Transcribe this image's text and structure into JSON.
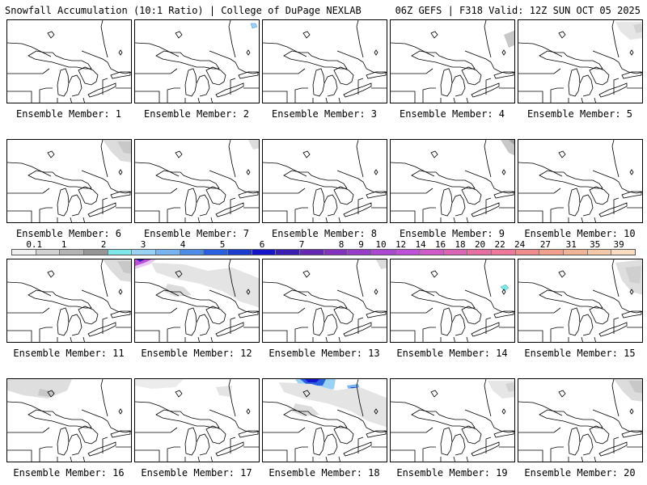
{
  "header": {
    "left": "Snowfall Accumulation (10:1 Ratio) | College of DuPage NEXLAB",
    "right": "06Z GEFS | F318 Valid: 12Z SUN OCT 05 2025"
  },
  "member_prefix": "Ensemble Member:",
  "members": [
    {
      "number": "1",
      "snow": []
    },
    {
      "number": "2",
      "snow": [
        "blue-ne-tiny"
      ]
    },
    {
      "number": "3",
      "snow": []
    },
    {
      "number": "4",
      "snow": [
        "gray-e-edge"
      ]
    },
    {
      "number": "5",
      "snow": [
        "gray-ne-light"
      ]
    },
    {
      "number": "6",
      "snow": [
        "gray-ne"
      ]
    },
    {
      "number": "7",
      "snow": [
        "gray-ne-tiny"
      ]
    },
    {
      "number": "8",
      "snow": []
    },
    {
      "number": "9",
      "snow": [
        "gray-ne-corner"
      ]
    },
    {
      "number": "10",
      "snow": []
    },
    {
      "number": "11",
      "snow": [
        "gray-ne"
      ]
    },
    {
      "number": "12",
      "snow": [
        "magenta-nw",
        "gray-broad"
      ]
    },
    {
      "number": "13",
      "snow": [
        "gray-ne-tiny"
      ]
    },
    {
      "number": "14",
      "snow": [
        "teal-e-tiny"
      ]
    },
    {
      "number": "15",
      "snow": [
        "gray-e"
      ]
    },
    {
      "number": "16",
      "snow": [
        "cyan-nw",
        "gray-nw"
      ]
    },
    {
      "number": "17",
      "snow": [
        "gray-light"
      ]
    },
    {
      "number": "18",
      "snow": [
        "blue-n-heavy",
        "gray-broad"
      ]
    },
    {
      "number": "19",
      "snow": [
        "gray-ne-light"
      ]
    },
    {
      "number": "20",
      "snow": [
        "gray-ne"
      ]
    }
  ],
  "colorbar": {
    "labels": [
      "0.1",
      "1",
      "2",
      "3",
      "4",
      "5",
      "6",
      "7",
      "8",
      "9",
      "10",
      "12",
      "14",
      "16",
      "18",
      "20",
      "22",
      "24",
      "27",
      "31",
      "35",
      "39"
    ],
    "colors": [
      "#f0f0f0",
      "#d2d2d2",
      "#b4b4b4",
      "#969696",
      "#7ee8e8",
      "#9ad2f5",
      "#78b4f0",
      "#4a8ce6",
      "#2860e0",
      "#1a3ccf",
      "#1414c8",
      "#3c1eb4",
      "#6428b4",
      "#8232be",
      "#963cc8",
      "#aa46d2",
      "#be50dc",
      "#d25ac8",
      "#dc64b4",
      "#e66ea0",
      "#f0789a",
      "#f08c8c",
      "#f0a08c",
      "#f0b496",
      "#f5c8aa",
      "#fadcc3"
    ]
  }
}
